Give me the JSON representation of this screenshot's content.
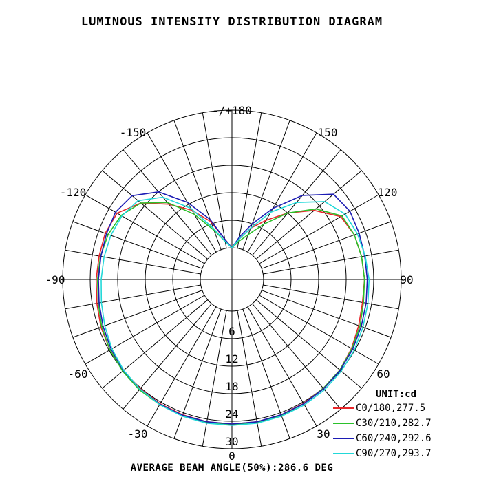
{
  "chart_data": {
    "type": "polar-line",
    "title": "LUMINOUS INTENSITY DISTRIBUTION DIAGRAM",
    "angle_labels": [
      {
        "angle": 180,
        "text": "-/+180"
      },
      {
        "angle": -150,
        "text": "-150"
      },
      {
        "angle": 150,
        "text": "150"
      },
      {
        "angle": -120,
        "text": "-120"
      },
      {
        "angle": 120,
        "text": "120"
      },
      {
        "angle": -90,
        "text": "-90"
      },
      {
        "angle": 90,
        "text": "90"
      },
      {
        "angle": -60,
        "text": "-60"
      },
      {
        "angle": 60,
        "text": "60"
      },
      {
        "angle": -30,
        "text": "-30"
      },
      {
        "angle": 30,
        "text": "30"
      },
      {
        "angle": 0,
        "text": "0"
      }
    ],
    "radial_ticks": [
      6,
      12,
      18,
      24,
      30
    ],
    "radial_max": 30,
    "angular_grid_step_deg": 10,
    "unit": "UNIT:cd",
    "series": [
      {
        "name": "C0/180,277.5",
        "color": "#e8262a",
        "points": [
          [
            -180,
            0
          ],
          [
            -170,
            2
          ],
          [
            -160,
            6.5
          ],
          [
            -150,
            10.5
          ],
          [
            -140,
            14.5
          ],
          [
            -130,
            19
          ],
          [
            -120,
            22
          ],
          [
            -110,
            22.5
          ],
          [
            -100,
            22.5
          ],
          [
            -90,
            22.7
          ],
          [
            -80,
            23
          ],
          [
            -70,
            23.5
          ],
          [
            -60,
            23.8
          ],
          [
            -50,
            24
          ],
          [
            -40,
            24.2
          ],
          [
            -30,
            24.4
          ],
          [
            -20,
            24.5
          ],
          [
            -10,
            24.6
          ],
          [
            0,
            24.6
          ],
          [
            10,
            24.6
          ],
          [
            20,
            24.5
          ],
          [
            30,
            24.3
          ],
          [
            40,
            24.1
          ],
          [
            50,
            23.8
          ],
          [
            60,
            23.2
          ],
          [
            70,
            22.5
          ],
          [
            80,
            22
          ],
          [
            90,
            22
          ],
          [
            100,
            21.8
          ],
          [
            110,
            21.5
          ],
          [
            120,
            20.5
          ],
          [
            130,
            16.5
          ],
          [
            140,
            12
          ],
          [
            150,
            8
          ],
          [
            160,
            5
          ],
          [
            170,
            2
          ],
          [
            180,
            0
          ]
        ]
      },
      {
        "name": "C30/210,282.7",
        "color": "#2bc12b",
        "points": [
          [
            -180,
            0
          ],
          [
            -170,
            1.5
          ],
          [
            -160,
            4.5
          ],
          [
            -150,
            9.5
          ],
          [
            -140,
            15
          ],
          [
            -130,
            19
          ],
          [
            -120,
            21
          ],
          [
            -110,
            21.8
          ],
          [
            -100,
            22.2
          ],
          [
            -90,
            22.4
          ],
          [
            -80,
            22.7
          ],
          [
            -70,
            23.3
          ],
          [
            -60,
            23.8
          ],
          [
            -50,
            24.2
          ],
          [
            -40,
            24.5
          ],
          [
            -30,
            24.6
          ],
          [
            -20,
            24.7
          ],
          [
            -10,
            24.7
          ],
          [
            0,
            24.7
          ],
          [
            10,
            24.7
          ],
          [
            20,
            24.6
          ],
          [
            30,
            24.4
          ],
          [
            40,
            24.1
          ],
          [
            50,
            23.8
          ],
          [
            60,
            23.3
          ],
          [
            70,
            22.8
          ],
          [
            80,
            22.2
          ],
          [
            90,
            22
          ],
          [
            100,
            21.8
          ],
          [
            110,
            21.5
          ],
          [
            120,
            20.8
          ],
          [
            130,
            17
          ],
          [
            140,
            12
          ],
          [
            150,
            7
          ],
          [
            160,
            3.5
          ],
          [
            170,
            1.5
          ],
          [
            180,
            0
          ]
        ]
      },
      {
        "name": "C60/240,292.6",
        "color": "#1c1cb4",
        "points": [
          [
            -180,
            0
          ],
          [
            -170,
            2
          ],
          [
            -160,
            7
          ],
          [
            -150,
            12.5
          ],
          [
            -140,
            18
          ],
          [
            -130,
            21.5
          ],
          [
            -120,
            22.4
          ],
          [
            -110,
            22.2
          ],
          [
            -100,
            22.1
          ],
          [
            -90,
            22.2
          ],
          [
            -80,
            22.5
          ],
          [
            -70,
            23
          ],
          [
            -60,
            23.5
          ],
          [
            -50,
            24
          ],
          [
            -40,
            24.3
          ],
          [
            -30,
            24.5
          ],
          [
            -20,
            24.6
          ],
          [
            -10,
            24.6
          ],
          [
            0,
            24.6
          ],
          [
            10,
            24.6
          ],
          [
            20,
            24.5
          ],
          [
            30,
            24.4
          ],
          [
            40,
            24.2
          ],
          [
            50,
            23.9
          ],
          [
            60,
            23.5
          ],
          [
            70,
            23.1
          ],
          [
            80,
            22.8
          ],
          [
            90,
            22.6
          ],
          [
            100,
            22.5
          ],
          [
            110,
            22.6
          ],
          [
            120,
            22.8
          ],
          [
            130,
            22
          ],
          [
            140,
            17
          ],
          [
            150,
            11
          ],
          [
            160,
            6
          ],
          [
            170,
            2.5
          ],
          [
            180,
            0
          ]
        ]
      },
      {
        "name": "C90/270,293.7",
        "color": "#22d8d8",
        "points": [
          [
            -180,
            0
          ],
          [
            -170,
            1.5
          ],
          [
            -160,
            5
          ],
          [
            -150,
            11
          ],
          [
            -140,
            16.5
          ],
          [
            -130,
            19.8
          ],
          [
            -120,
            20.8
          ],
          [
            -110,
            21.2
          ],
          [
            -100,
            21.4
          ],
          [
            -90,
            21.6
          ],
          [
            -80,
            22
          ],
          [
            -70,
            22.6
          ],
          [
            -60,
            23.3
          ],
          [
            -50,
            23.9
          ],
          [
            -40,
            24.3
          ],
          [
            -30,
            24.6
          ],
          [
            -20,
            24.8
          ],
          [
            -10,
            24.9
          ],
          [
            0,
            24.9
          ],
          [
            10,
            24.9
          ],
          [
            20,
            24.8
          ],
          [
            30,
            24.7
          ],
          [
            40,
            24.5
          ],
          [
            50,
            24.2
          ],
          [
            60,
            23.9
          ],
          [
            70,
            23.5
          ],
          [
            80,
            23.2
          ],
          [
            90,
            23
          ],
          [
            100,
            22.6
          ],
          [
            110,
            22.2
          ],
          [
            120,
            21.6
          ],
          [
            130,
            19.5
          ],
          [
            140,
            15
          ],
          [
            150,
            10
          ],
          [
            160,
            5
          ],
          [
            170,
            2
          ],
          [
            180,
            0
          ]
        ]
      }
    ],
    "footer": "AVERAGE BEAM ANGLE(50%):286.6 DEG"
  }
}
